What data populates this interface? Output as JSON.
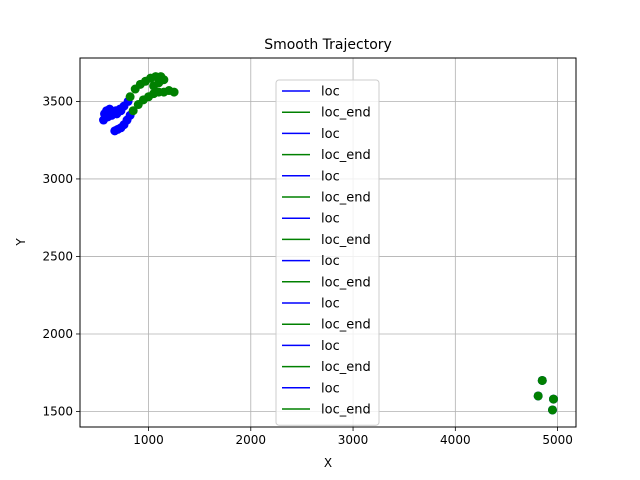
{
  "chart_data": {
    "type": "scatter",
    "title": "Smooth Trajectory",
    "xlabel": "X",
    "ylabel": "Y",
    "xlim": [
      330,
      5180
    ],
    "ylim": [
      1400,
      3780
    ],
    "xticks": [
      1000,
      2000,
      3000,
      4000,
      5000
    ],
    "yticks": [
      1500,
      2000,
      2500,
      3000,
      3500
    ],
    "xtick_labels": [
      "1000",
      "2000",
      "3000",
      "4000",
      "5000"
    ],
    "ytick_labels": [
      "1500",
      "2000",
      "2500",
      "3000",
      "3500"
    ],
    "grid": true,
    "legend_position": "center",
    "series": [
      {
        "name": "loc",
        "color": "#0000ff",
        "points": [
          [
            570,
            3420
          ],
          [
            590,
            3440
          ],
          [
            620,
            3450
          ],
          [
            650,
            3430
          ],
          [
            680,
            3440
          ],
          [
            720,
            3450
          ],
          [
            760,
            3470
          ],
          [
            800,
            3500
          ],
          [
            560,
            3380
          ],
          [
            600,
            3400
          ],
          [
            640,
            3410
          ],
          [
            690,
            3420
          ],
          [
            730,
            3440
          ]
        ]
      },
      {
        "name": "loc_end",
        "color": "#008000",
        "points": [
          [
            820,
            3530
          ],
          [
            870,
            3580
          ],
          [
            920,
            3610
          ],
          [
            970,
            3630
          ],
          [
            1020,
            3650
          ],
          [
            1070,
            3660
          ],
          [
            1120,
            3660
          ],
          [
            1150,
            3640
          ],
          [
            1100,
            3620
          ],
          [
            1050,
            3600
          ]
        ]
      },
      {
        "name": "loc",
        "color": "#0000ff",
        "points": [
          [
            670,
            3310
          ],
          [
            700,
            3320
          ],
          [
            730,
            3330
          ],
          [
            760,
            3350
          ],
          [
            790,
            3380
          ],
          [
            820,
            3410
          ]
        ]
      },
      {
        "name": "loc_end",
        "color": "#008000",
        "points": [
          [
            850,
            3440
          ],
          [
            900,
            3480
          ],
          [
            950,
            3510
          ],
          [
            1000,
            3530
          ],
          [
            1050,
            3550
          ],
          [
            1100,
            3560
          ],
          [
            1150,
            3560
          ],
          [
            1200,
            3570
          ],
          [
            1250,
            3560
          ]
        ]
      },
      {
        "name": "loc",
        "color": "#0000ff",
        "points": [
          [
            4850,
            1700
          ]
        ]
      },
      {
        "name": "loc_end",
        "color": "#008000",
        "points": [
          [
            4850,
            1700
          ]
        ]
      },
      {
        "name": "loc",
        "color": "#0000ff",
        "points": [
          [
            4810,
            1600
          ]
        ]
      },
      {
        "name": "loc_end",
        "color": "#008000",
        "points": [
          [
            4810,
            1600
          ]
        ]
      },
      {
        "name": "loc",
        "color": "#0000ff",
        "points": [
          [
            4960,
            1580
          ]
        ]
      },
      {
        "name": "loc_end",
        "color": "#008000",
        "points": [
          [
            4960,
            1580
          ]
        ]
      },
      {
        "name": "loc",
        "color": "#0000ff",
        "points": [
          [
            4950,
            1510
          ]
        ]
      },
      {
        "name": "loc_end",
        "color": "#008000",
        "points": [
          [
            4950,
            1510
          ]
        ]
      },
      {
        "name": "loc",
        "color": "#0000ff",
        "points": []
      },
      {
        "name": "loc_end",
        "color": "#008000",
        "points": []
      },
      {
        "name": "loc",
        "color": "#0000ff",
        "points": []
      },
      {
        "name": "loc_end",
        "color": "#008000",
        "points": []
      }
    ]
  }
}
